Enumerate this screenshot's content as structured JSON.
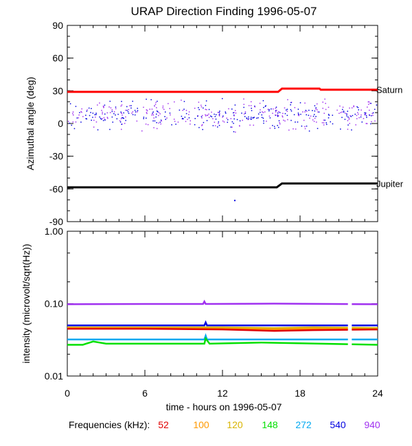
{
  "title": "URAP Direction Finding  1996-05-07",
  "xlabel": "time - hours on 1996-05-07",
  "legend": {
    "prefix": "Frequencies (kHz):",
    "items": [
      {
        "label": "52",
        "color": "#e00000"
      },
      {
        "label": "100",
        "color": "#ff9900"
      },
      {
        "label": "120",
        "color": "#d8b400"
      },
      {
        "label": "148",
        "color": "#00e000"
      },
      {
        "label": "272",
        "color": "#00a8f0"
      },
      {
        "label": "540",
        "color": "#0000e0"
      },
      {
        "label": "940",
        "color": "#a030f0"
      }
    ]
  },
  "chart_data": [
    {
      "type": "scatter",
      "title": "URAP Direction Finding  1996-05-07",
      "ylabel": "Azimuthal angle (deg)",
      "xlim": [
        0,
        24
      ],
      "ylim": [
        -90,
        90
      ],
      "xticks": [
        "0",
        "6",
        "12",
        "18",
        "24"
      ],
      "yticks": [
        "90",
        "60",
        "30",
        "0",
        "-30",
        "-60",
        "-90"
      ],
      "scatter_band": {
        "x_range": [
          0,
          24
        ],
        "y_range": [
          -10,
          27
        ],
        "colors": [
          "#0000e0",
          "#a030f0"
        ]
      },
      "outliers": [
        {
          "x": 12.9,
          "y": -70
        }
      ],
      "series": [
        {
          "name": "Saturn",
          "color": "#ff0000",
          "x": [
            0,
            16.3,
            16.6,
            19.5,
            19.6,
            24
          ],
          "y": [
            29,
            29,
            32,
            32,
            31,
            31
          ]
        },
        {
          "name": "Jupiter",
          "color": "#000000",
          "x": [
            0,
            16.2,
            16.6,
            24
          ],
          "y": [
            -58.5,
            -58.5,
            -55,
            -55
          ]
        }
      ]
    },
    {
      "type": "line",
      "ylabel": "intensity (microvolt/sqrt(Hz))",
      "yscale": "log",
      "xlim": [
        0,
        24
      ],
      "ylim": [
        0.01,
        1.0
      ],
      "xticks": [
        "0",
        "6",
        "12",
        "18",
        "24"
      ],
      "yticks": [
        "1.00",
        "0.10",
        "0.01"
      ],
      "data_gap": [
        21.7,
        22.0
      ],
      "series": [
        {
          "name": "940",
          "color": "#a030f0",
          "x": [
            0,
            6,
            10.5,
            10.6,
            10.7,
            16,
            24
          ],
          "y": [
            0.098,
            0.099,
            0.099,
            0.107,
            0.099,
            0.1,
            0.098
          ]
        },
        {
          "name": "540",
          "color": "#0000e0",
          "x": [
            0,
            6,
            10.6,
            10.7,
            10.8,
            24
          ],
          "y": [
            0.05,
            0.05,
            0.05,
            0.055,
            0.05,
            0.05
          ]
        },
        {
          "name": "120",
          "color": "#d8b400",
          "x": [
            0,
            6,
            12,
            16,
            19,
            24
          ],
          "y": [
            0.047,
            0.047,
            0.047,
            0.046,
            0.047,
            0.046
          ]
        },
        {
          "name": "100",
          "color": "#ff9900",
          "x": [
            0,
            6,
            12,
            16,
            19,
            24
          ],
          "y": [
            0.046,
            0.046,
            0.045,
            0.044,
            0.045,
            0.044
          ]
        },
        {
          "name": "52",
          "color": "#e00000",
          "x": [
            0,
            6,
            12,
            14,
            16,
            19,
            24
          ],
          "y": [
            0.045,
            0.045,
            0.044,
            0.043,
            0.042,
            0.043,
            0.044
          ]
        },
        {
          "name": "272",
          "color": "#00a8f0",
          "x": [
            0,
            6,
            10.6,
            10.7,
            10.8,
            24
          ],
          "y": [
            0.032,
            0.032,
            0.032,
            0.036,
            0.032,
            0.032
          ]
        },
        {
          "name": "148",
          "color": "#00e000",
          "x": [
            0,
            1.2,
            2.0,
            3.0,
            6,
            10.6,
            10.7,
            11,
            15,
            24
          ],
          "y": [
            0.027,
            0.027,
            0.03,
            0.028,
            0.028,
            0.028,
            0.033,
            0.028,
            0.029,
            0.027
          ]
        }
      ]
    }
  ]
}
